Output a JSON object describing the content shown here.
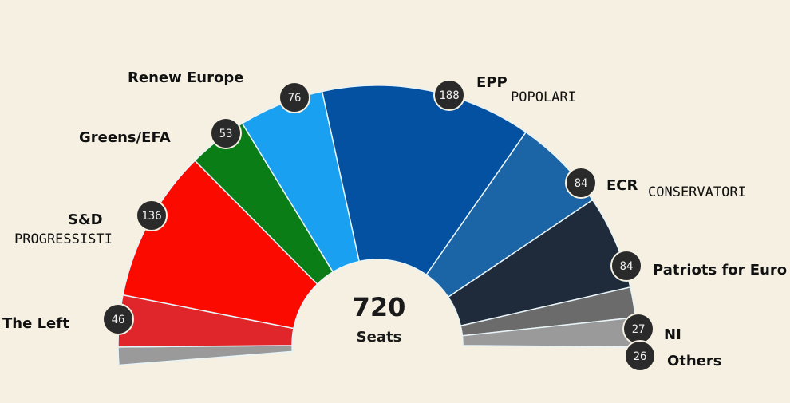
{
  "chart_data": {
    "type": "pie",
    "subtype": "semicircle-parliament",
    "total": 720,
    "total_label": "Seats",
    "series": [
      {
        "name": "The Left",
        "sub": "",
        "value": 46,
        "color": "#e0262b"
      },
      {
        "name": "S&D",
        "sub": "PROGRESSISTI",
        "value": 136,
        "color": "#fb0a00"
      },
      {
        "name": "Greens/EFA",
        "sub": "",
        "value": 53,
        "color": "#0b7d16"
      },
      {
        "name": "Renew Europe",
        "sub": "",
        "value": 76,
        "color": "#1aa0f1"
      },
      {
        "name": "EPP",
        "sub": "POPOLARI",
        "value": 188,
        "color": "#0351a0"
      },
      {
        "name": "ECR",
        "sub": "CONSERVATORI",
        "value": 84,
        "color": "#1b64a6"
      },
      {
        "name": "Patriots for Euro",
        "sub": "",
        "value": 84,
        "color": "#1f2b3b"
      },
      {
        "name": "NI",
        "sub": "",
        "value": 27,
        "color": "#6b6b6b"
      },
      {
        "name": "Others",
        "sub": "",
        "value": 26,
        "color": "#9a9a9a"
      }
    ],
    "left_sliver_color": "#9a9a9a",
    "badge_color": "#2a2a2a"
  }
}
